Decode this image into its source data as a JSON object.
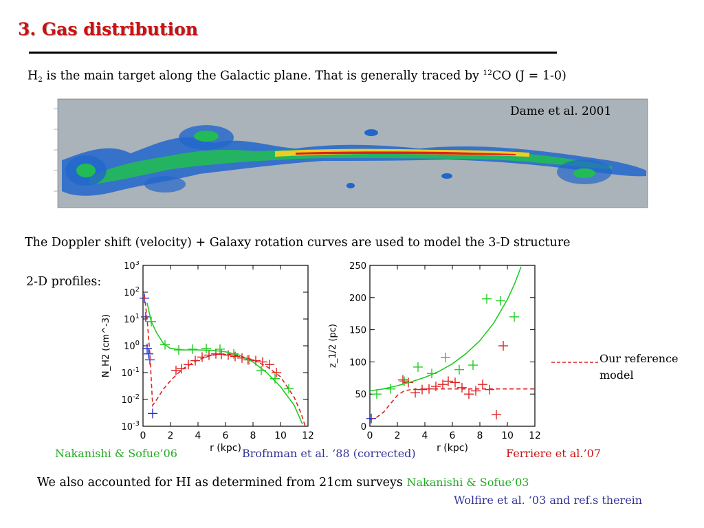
{
  "slide": {
    "title": "3. Gas distribution",
    "intro": {
      "h": "H",
      "sub": "2",
      "text": "is the main target along the Galactic plane. That is generally traced by",
      "sup": "12",
      "co": "CO (J = 1-0)"
    },
    "map_caption": "Dame et al. 2001",
    "doppler_text": "The Doppler shift (velocity) +  Galaxy rotation curves are used to model the 3-D structure",
    "profiles_label": "2-D profiles:",
    "reference_label_1": "Our reference",
    "reference_label_2": "model",
    "credit_nakanishi06": "Nakanishi & Sofue’06",
    "credit_bronfman": "Brofnman et al. ‘88 (corrected)",
    "credit_ferriere": "Ferriere et al.’07",
    "hi_text": "We also accounted for HI as determined from 21cm surveys",
    "credit_nakanishi03": "Nakanishi & Sofue’03",
    "credit_wolfire": "Wolfire et al. ‘03 and ref.s therein"
  },
  "colors": {
    "title": "#cc1111",
    "green": "#22aa22",
    "navy": "#333399",
    "red": "#cc1111",
    "map_bg": "#a9b3b9"
  },
  "chart_data": [
    {
      "type": "scatter",
      "title": "",
      "xlabel": "r (kpc)",
      "ylabel": "N_H2 (cm^-3)",
      "xlim": [
        0,
        12
      ],
      "ylim": [
        0.001,
        1000
      ],
      "yscale": "log",
      "xticks": [
        "0",
        "2",
        "4",
        "6",
        "8",
        "10",
        "12"
      ],
      "yticks": [
        "10^-3",
        "10^-2",
        "10^-1",
        "10^0",
        "10^1",
        "10^2",
        "10^3"
      ],
      "series": [
        {
          "color": "#22cc22",
          "kind": "points",
          "x": [
            0.6,
            1.6,
            2.6,
            3.6,
            4.6,
            5.6,
            6.6,
            7.6,
            8.6,
            9.6,
            10.6
          ],
          "y": [
            8,
            1.1,
            0.7,
            0.75,
            0.8,
            0.75,
            0.5,
            0.3,
            0.12,
            0.06,
            0.025
          ]
        },
        {
          "color": "#dd2222",
          "kind": "points",
          "x": [
            2.4,
            2.8,
            3.3,
            3.8,
            4.3,
            4.8,
            5.3,
            5.7,
            6.2,
            6.7,
            7.2,
            7.7,
            8.2,
            8.7,
            9.2,
            9.7
          ],
          "y": [
            0.12,
            0.14,
            0.2,
            0.28,
            0.38,
            0.45,
            0.5,
            0.48,
            0.45,
            0.4,
            0.35,
            0.3,
            0.28,
            0.25,
            0.2,
            0.1
          ]
        },
        {
          "color": "#2233cc",
          "kind": "points",
          "x": [
            0.1,
            0.2,
            0.3,
            0.4,
            0.5,
            0.7
          ],
          "y": [
            60,
            12,
            0.8,
            0.5,
            0.3,
            0.003
          ]
        },
        {
          "color": "#22cc22",
          "kind": "line",
          "x": [
            0.3,
            0.6,
            1.0,
            1.5,
            2.0,
            3.0,
            4.0,
            5.0,
            6.0,
            7.0,
            8.0,
            9.0,
            10.0,
            11.0,
            11.6
          ],
          "y": [
            40,
            8,
            3,
            1.2,
            0.8,
            0.7,
            0.7,
            0.68,
            0.6,
            0.45,
            0.25,
            0.1,
            0.03,
            0.006,
            0.0012
          ]
        },
        {
          "color": "#dd2222",
          "kind": "dashed",
          "x": [
            0.1,
            0.3,
            0.5,
            0.7,
            1.0,
            1.5,
            2.0,
            2.5,
            3.0,
            4.0,
            5.0,
            6.0,
            7.0,
            8.0,
            9.0,
            10.0,
            11.0,
            11.5,
            11.8
          ],
          "y": [
            80,
            10,
            0.5,
            0.006,
            0.01,
            0.025,
            0.05,
            0.09,
            0.15,
            0.3,
            0.45,
            0.5,
            0.42,
            0.3,
            0.17,
            0.07,
            0.012,
            0.003,
            0.001
          ]
        }
      ]
    },
    {
      "type": "scatter",
      "title": "",
      "xlabel": "r (kpc)",
      "ylabel": "z_1/2 (pc)",
      "xlim": [
        0,
        12
      ],
      "ylim": [
        0,
        250
      ],
      "yscale": "linear",
      "xticks": [
        "0",
        "2",
        "4",
        "6",
        "8",
        "10",
        "12"
      ],
      "yticks": [
        "0",
        "50",
        "100",
        "150",
        "200",
        "250"
      ],
      "series": [
        {
          "color": "#22cc22",
          "kind": "points",
          "x": [
            0.5,
            1.5,
            2.5,
            3.5,
            4.5,
            5.5,
            6.5,
            7.5,
            8.5,
            9.5,
            10.5
          ],
          "y": [
            50,
            58,
            70,
            92,
            82,
            107,
            88,
            95,
            198,
            195,
            170
          ]
        },
        {
          "color": "#dd2222",
          "kind": "points",
          "x": [
            2.4,
            2.8,
            3.3,
            3.8,
            4.3,
            4.8,
            5.3,
            5.7,
            6.2,
            6.7,
            7.2,
            7.7,
            8.2,
            8.7,
            9.2,
            9.7
          ],
          "y": [
            72,
            68,
            52,
            57,
            58,
            62,
            65,
            70,
            68,
            60,
            50,
            55,
            65,
            57,
            18,
            125
          ]
        },
        {
          "color": "#2233cc",
          "kind": "points",
          "x": [
            0.1
          ],
          "y": [
            12
          ]
        },
        {
          "color": "#22cc22",
          "kind": "line",
          "x": [
            0,
            1,
            2,
            3,
            4,
            5,
            6,
            7,
            8,
            9,
            10,
            10.5,
            11
          ],
          "y": [
            55,
            58,
            63,
            69,
            76,
            85,
            97,
            113,
            133,
            160,
            197,
            220,
            248
          ]
        },
        {
          "color": "#dd2222",
          "kind": "dashed",
          "x": [
            0,
            0.5,
            1,
            1.5,
            2,
            2.5,
            3,
            4,
            6,
            8,
            10,
            12
          ],
          "y": [
            10,
            14,
            22,
            35,
            48,
            55,
            57,
            58,
            58,
            58,
            58,
            58
          ]
        }
      ]
    }
  ]
}
